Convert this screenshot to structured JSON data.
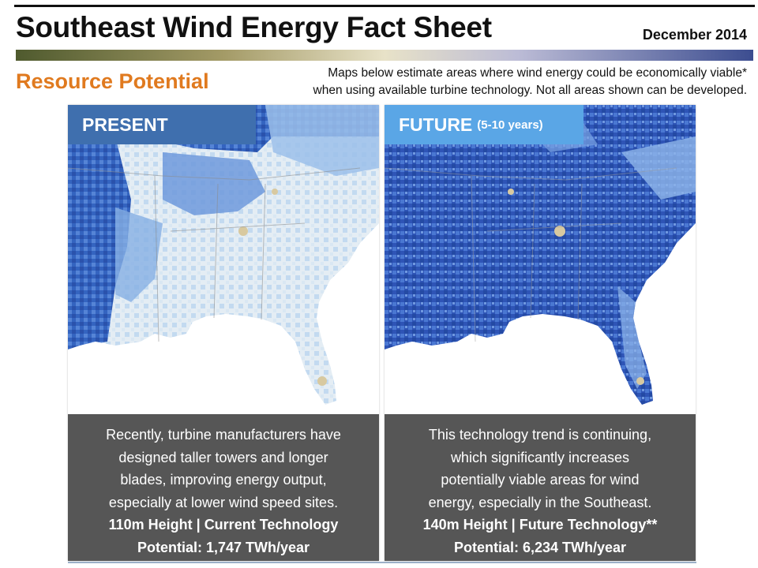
{
  "header": {
    "title": "Southeast Wind Energy Fact Sheet",
    "date": "December 2014"
  },
  "section": {
    "title": "Resource Potential",
    "description_line1": "Maps below estimate areas where wind energy could be economically viable*",
    "description_line2": "when using available turbine technology.  Not all areas shown can be developed."
  },
  "panels": [
    {
      "label": "PRESENT",
      "label_sub": "",
      "text_lines": [
        "Recently, turbine manufacturers have",
        "designed taller towers and longer",
        "blades, improving energy output,",
        "especially at lower wind speed sites."
      ],
      "height_line": "110m Height | Current Technology",
      "potential_line": "Potential: 1,747 TWh/year"
    },
    {
      "label": "FUTURE",
      "label_sub": "(5-10 years)",
      "text_lines": [
        "This technology trend is continuing,",
        "which significantly increases",
        "potentially viable areas for wind",
        "energy, especially in the Southeast."
      ],
      "height_line": "140m Height | Future Technology**",
      "potential_line": "Potential: 6,234 TWh/year"
    }
  ],
  "colors": {
    "section_orange": "#e07a1f",
    "present_tag": "#3f6fae",
    "future_tag": "#5aa6e6",
    "text_box": "#565656",
    "map_dark_blue": "#2f55b8",
    "map_mid_blue": "#5f8fd8",
    "map_light_blue": "#b8d3ee",
    "map_pale": "#e6eef3",
    "map_tan": "#d8c9a0"
  }
}
